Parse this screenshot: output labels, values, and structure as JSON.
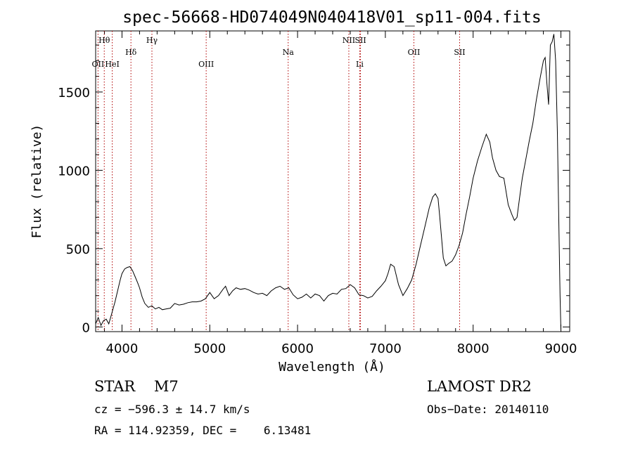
{
  "chart_data": {
    "type": "line",
    "title": "spec-56668-HD074049N040418V01_sp11-004.fits",
    "xlabel": "Wavelength (Å)",
    "ylabel": "Flux (relative)",
    "xlim": [
      3700,
      9100
    ],
    "ylim": [
      -30,
      1890
    ],
    "xticks": [
      4000,
      5000,
      6000,
      7000,
      8000,
      9000
    ],
    "yticks": [
      0,
      500,
      1000,
      1500
    ],
    "grid": false,
    "series": [
      {
        "x": [
          3700,
          3730,
          3760,
          3790,
          3820,
          3850,
          3880,
          3900,
          3920,
          3950,
          3980,
          4000,
          4030,
          4060,
          4090,
          4120,
          4150,
          4180,
          4200,
          4230,
          4260,
          4300,
          4340,
          4380,
          4420,
          4460,
          4500,
          4550,
          4600,
          4650,
          4700,
          4750,
          4800,
          4850,
          4900,
          4950,
          5000,
          5050,
          5100,
          5150,
          5180,
          5220,
          5260,
          5300,
          5350,
          5400,
          5450,
          5500,
          5550,
          5600,
          5650,
          5700,
          5750,
          5800,
          5850,
          5900,
          5950,
          6000,
          6050,
          6100,
          6150,
          6200,
          6250,
          6300,
          6350,
          6400,
          6450,
          6500,
          6550,
          6600,
          6650,
          6700,
          6750,
          6800,
          6850,
          6900,
          6950,
          7000,
          7030,
          7060,
          7100,
          7150,
          7200,
          7250,
          7300,
          7350,
          7400,
          7450,
          7500,
          7540,
          7570,
          7600,
          7620,
          7640,
          7660,
          7690,
          7720,
          7760,
          7800,
          7840,
          7880,
          7920,
          7960,
          8000,
          8050,
          8100,
          8150,
          8190,
          8220,
          8260,
          8300,
          8350,
          8400,
          8440,
          8470,
          8500,
          8530,
          8560,
          8600,
          8640,
          8680,
          8720,
          8760,
          8800,
          8820,
          8840,
          8860,
          8880,
          8900,
          8920,
          8940,
          8960,
          8980,
          8990,
          9000
        ],
        "values": [
          20,
          60,
          10,
          40,
          50,
          20,
          80,
          120,
          160,
          230,
          300,
          340,
          370,
          380,
          385,
          360,
          320,
          280,
          250,
          190,
          150,
          125,
          135,
          115,
          125,
          110,
          115,
          120,
          150,
          140,
          145,
          155,
          160,
          160,
          165,
          180,
          220,
          180,
          200,
          240,
          260,
          200,
          230,
          250,
          240,
          245,
          235,
          220,
          210,
          215,
          200,
          230,
          250,
          260,
          240,
          250,
          205,
          180,
          190,
          210,
          185,
          210,
          200,
          165,
          200,
          215,
          210,
          240,
          245,
          270,
          250,
          205,
          200,
          185,
          195,
          230,
          260,
          295,
          340,
          400,
          385,
          270,
          200,
          245,
          300,
          400,
          520,
          640,
          760,
          830,
          850,
          820,
          700,
          570,
          440,
          390,
          405,
          420,
          460,
          520,
          600,
          720,
          830,
          950,
          1060,
          1150,
          1230,
          1180,
          1080,
          1000,
          960,
          950,
          780,
          720,
          680,
          700,
          830,
          950,
          1070,
          1190,
          1300,
          1450,
          1580,
          1700,
          1720,
          1560,
          1420,
          1800,
          1820,
          1870,
          1700,
          1240,
          540,
          200,
          -20
        ]
      }
    ],
    "lines": [
      {
        "label": "Hθ",
        "x": 3798
      },
      {
        "label": "OII",
        "x": 3727
      },
      {
        "label": "HeI",
        "x": 3889
      },
      {
        "label": "Hδ",
        "x": 4102
      },
      {
        "label": "Hγ",
        "x": 4341
      },
      {
        "label": "OIII",
        "x": 4959
      },
      {
        "label": "Na",
        "x": 5893
      },
      {
        "label": "NII",
        "x": 6584
      },
      {
        "label": "SII",
        "x": 6717
      },
      {
        "label": "Li",
        "x": 6708
      },
      {
        "label": "OII",
        "x": 7325
      },
      {
        "label": "SII",
        "x": 7846
      }
    ],
    "colors": {
      "spectrum": "#000000",
      "lines": "#b00000"
    }
  },
  "info": {
    "class": "STAR    M7",
    "survey": "LAMOST DR2",
    "cz": "cz = −596.3 ± 14.7 km/s",
    "obs_date": "Obs−Date: 20140110",
    "radec": "RA = 114.92359, DEC =    6.13481"
  }
}
